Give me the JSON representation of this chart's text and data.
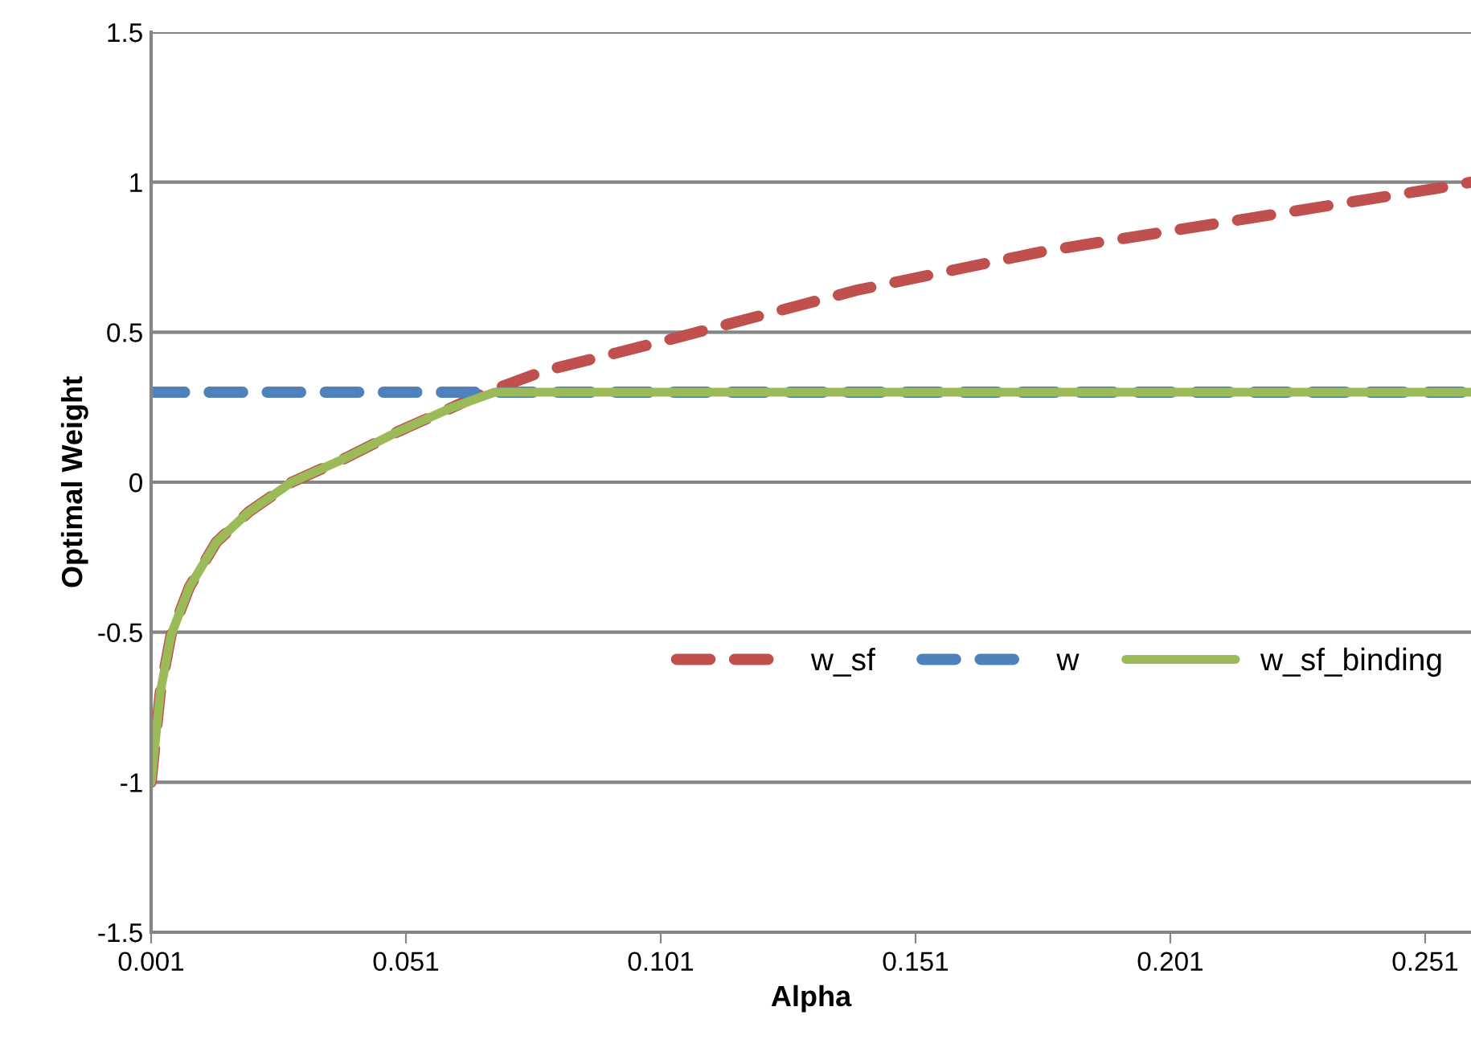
{
  "chart_data": {
    "type": "line",
    "xlabel": "Alpha",
    "ylabel": "Optimal Weight",
    "xlim": [
      0.001,
      0.26
    ],
    "xticks": [
      0.001,
      0.051,
      0.101,
      0.151,
      0.201,
      0.251
    ],
    "ylim": [
      -1.5,
      1.5
    ],
    "yticks": [
      -1.5,
      -1,
      -0.5,
      0,
      0.5,
      1,
      1.5
    ],
    "grid": "y",
    "legend": "center right",
    "marker": "none",
    "series": [
      {
        "name": "w_sf",
        "color": "#c0504d",
        "line_style": "dashed",
        "x": [
          0.001,
          0.0028,
          0.0049,
          0.0085,
          0.0138,
          0.0201,
          0.0286,
          0.0391,
          0.0496,
          0.0602,
          0.066,
          0.078,
          0.1038,
          0.1395,
          0.1763,
          0.213,
          0.2498,
          0.2572,
          0.26
        ],
        "values": [
          -1,
          -0.7,
          -0.51,
          -0.35,
          -0.2,
          -0.1,
          0,
          0.08,
          0.17,
          0.25,
          0.295,
          0.37,
          0.48,
          0.64,
          0.77,
          0.87,
          0.97,
          0.99,
          1.0
        ]
      },
      {
        "name": "w",
        "color": "#4f81bd",
        "line_style": "dashed",
        "x": [
          0.001,
          0.26
        ],
        "values": [
          0.3,
          0.3
        ]
      },
      {
        "name": "w_sf_binding",
        "color": "#9bbb59",
        "line_style": "solid",
        "x": [
          0.001,
          0.0028,
          0.0049,
          0.0085,
          0.0138,
          0.0201,
          0.0286,
          0.0391,
          0.0496,
          0.0602,
          0.0684,
          0.26
        ],
        "values": [
          -1,
          -0.7,
          -0.51,
          -0.35,
          -0.2,
          -0.1,
          0,
          0.08,
          0.17,
          0.25,
          0.3,
          0.3
        ]
      }
    ]
  }
}
